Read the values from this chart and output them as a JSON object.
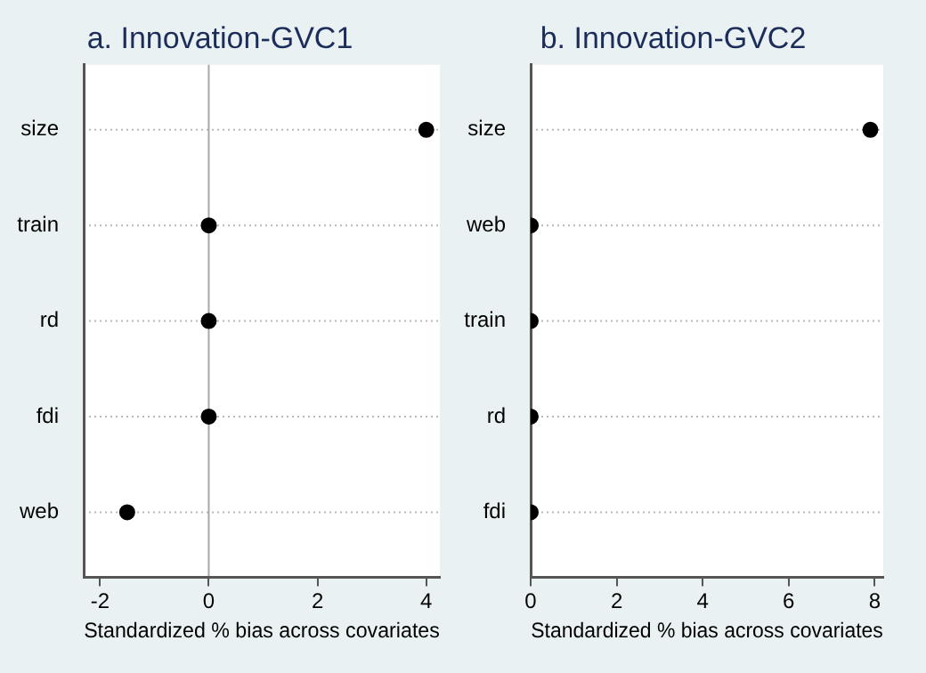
{
  "chart_data": [
    {
      "type": "scatter",
      "title": "a. Innovation-GVC1",
      "xlabel": "Standardized % bias across covariates",
      "categories": [
        "size",
        "train",
        "rd",
        "fdi",
        "web"
      ],
      "values": [
        4,
        0,
        0,
        0,
        -1.5
      ],
      "color": "#000000",
      "orientation": "horizontal",
      "xlim": [
        -2.3,
        4.25
      ],
      "xticks": [
        -2,
        0,
        2,
        4
      ],
      "ref_lines": [
        {
          "axis": "x",
          "value": 0,
          "color": "#a8a8a8"
        }
      ],
      "grid": "y",
      "marker": "circle"
    },
    {
      "type": "scatter",
      "title": "b. Innovation-GVC2",
      "xlabel": "Standardized % bias across covariates",
      "categories": [
        "size",
        "web",
        "train",
        "rd",
        "fdi"
      ],
      "values": [
        7.9,
        0,
        0,
        0,
        0
      ],
      "color": "#000000",
      "orientation": "horizontal",
      "xlim": [
        0,
        8.2
      ],
      "xticks": [
        0,
        2,
        4,
        6,
        8
      ],
      "grid": "y",
      "marker": "circle"
    }
  ]
}
